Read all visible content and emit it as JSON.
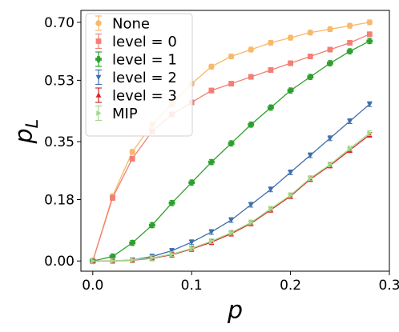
{
  "chart_data": {
    "type": "line",
    "xlabel": "p",
    "ylabel": "p_L",
    "xlim": [
      -0.012,
      0.3
    ],
    "ylim": [
      -0.03,
      0.735
    ],
    "xticks": [
      0.0,
      0.1,
      0.2,
      0.3
    ],
    "xtick_labels": [
      "0.0",
      "0.1",
      "0.2",
      "0.3"
    ],
    "yticks": [
      0.0,
      0.18,
      0.35,
      0.53,
      0.7
    ],
    "ytick_labels": [
      "0.00",
      "0.18",
      "0.35",
      "0.53",
      "0.70"
    ],
    "legend_position": "top-left",
    "x": [
      0.0,
      0.02,
      0.04,
      0.06,
      0.08,
      0.1,
      0.12,
      0.14,
      0.16,
      0.18,
      0.2,
      0.22,
      0.24,
      0.26,
      0.28
    ],
    "series": [
      {
        "name": "None",
        "color": "#f7b96b",
        "marker": "circle",
        "values": [
          0.0,
          0.19,
          0.32,
          0.4,
          0.46,
          0.52,
          0.57,
          0.6,
          0.62,
          0.64,
          0.655,
          0.67,
          0.68,
          0.69,
          0.7
        ]
      },
      {
        "name": "level = 0",
        "color": "#f37f74",
        "marker": "square",
        "values": [
          0.0,
          0.185,
          0.3,
          0.38,
          0.43,
          0.465,
          0.5,
          0.52,
          0.54,
          0.56,
          0.58,
          0.6,
          0.62,
          0.64,
          0.665
        ]
      },
      {
        "name": "level = 1",
        "color": "#2ca02c",
        "marker": "plus",
        "values": [
          0.0,
          0.013,
          0.053,
          0.105,
          0.17,
          0.23,
          0.29,
          0.345,
          0.4,
          0.45,
          0.5,
          0.54,
          0.58,
          0.615,
          0.645
        ]
      },
      {
        "name": "level = 2",
        "color": "#3f6fad",
        "marker": "triangle-down",
        "values": [
          0.0,
          0.0,
          0.003,
          0.013,
          0.03,
          0.055,
          0.085,
          0.12,
          0.165,
          0.21,
          0.26,
          0.31,
          0.36,
          0.41,
          0.46
        ]
      },
      {
        "name": "level = 3",
        "color": "#d62728",
        "marker": "triangle-up",
        "values": [
          0.0,
          0.0,
          0.002,
          0.008,
          0.018,
          0.035,
          0.055,
          0.08,
          0.11,
          0.15,
          0.19,
          0.24,
          0.28,
          0.325,
          0.37
        ]
      },
      {
        "name": "MIP",
        "color": "#a4d88a",
        "marker": "triangle-right",
        "values": [
          0.0,
          0.0,
          0.003,
          0.009,
          0.02,
          0.037,
          0.058,
          0.083,
          0.113,
          0.153,
          0.193,
          0.243,
          0.283,
          0.33,
          0.375
        ]
      }
    ]
  }
}
